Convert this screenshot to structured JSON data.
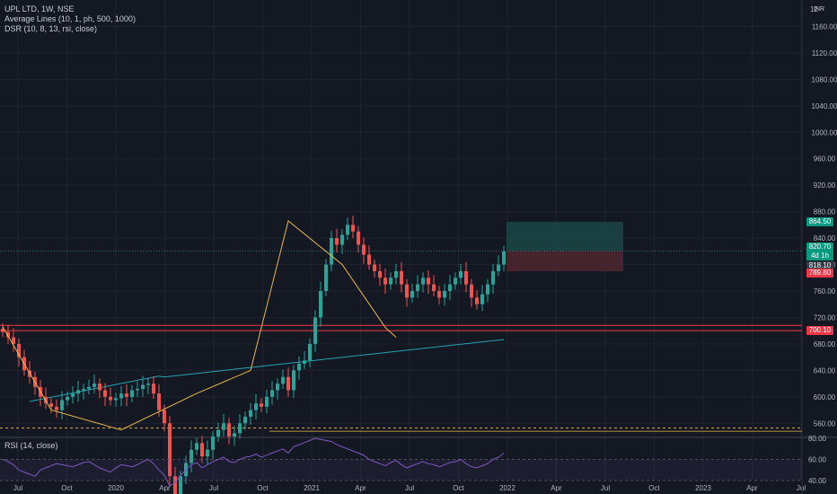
{
  "legend": {
    "symbol": "UPL LTD, 1W, NSE",
    "indicator1": "Average Lines (10, 1, ph, 500, 1000)",
    "indicator2": "DSR (10, 8, 13, rsi, close)",
    "rsi": "RSI (14, close)",
    "currency": "INR",
    "top_price_label": "12"
  },
  "price_tags": [
    {
      "label": "864.50",
      "sub": "",
      "color": "#089981"
    },
    {
      "label": "820.70",
      "sub": "4d 1h",
      "color": "#089981"
    },
    {
      "label": "818.10",
      "sub": "",
      "color": "#363a45"
    },
    {
      "label": "789.80",
      "sub": "",
      "color": "#f23645"
    },
    {
      "label": "700.10",
      "sub": "",
      "color": "#f23645"
    }
  ],
  "colors": {
    "background": "#141823",
    "grid": "#1f2330",
    "up": "#26a69a",
    "down": "#ef5350",
    "pattern_line": "#e8b84b",
    "avg_line": "#26a0b0",
    "resistance": "#f23645",
    "rsi_line": "#7e57c2",
    "target_zone": "#1a4a47",
    "stop_zone": "#4a2630",
    "text": "#b2b5be"
  },
  "chart_data": {
    "type": "candlestick",
    "timeframe": "1W",
    "ylim": [
      540,
      1200
    ],
    "y_ticks": [
      560,
      600,
      640,
      680,
      720,
      760,
      800,
      840,
      880,
      920,
      960,
      1000,
      1040,
      1080,
      1120,
      1160
    ],
    "x_ticks": [
      "Jul",
      "Oct",
      "2020",
      "Apr",
      "Jul",
      "Oct",
      "2021",
      "Apr",
      "Jul",
      "Oct",
      "2022",
      "Apr",
      "Jul",
      "Oct",
      "2023",
      "Apr",
      "Jul"
    ],
    "closes": [
      698,
      690,
      680,
      660,
      640,
      630,
      615,
      600,
      590,
      585,
      580,
      595,
      600,
      605,
      610,
      612,
      615,
      620,
      610,
      600,
      595,
      598,
      605,
      600,
      610,
      612,
      618,
      620,
      605,
      580,
      560,
      480,
      450,
      480,
      500,
      520,
      530,
      510,
      520,
      540,
      550,
      560,
      540,
      545,
      560,
      570,
      580,
      590,
      585,
      600,
      610,
      620,
      630,
      610,
      640,
      650,
      655,
      680,
      720,
      760,
      800,
      840,
      830,
      845,
      860,
      850,
      830,
      815,
      800,
      790,
      780,
      770,
      780,
      790,
      770,
      750,
      760,
      770,
      780,
      770,
      760,
      750,
      760,
      770,
      780,
      790,
      770,
      750,
      740,
      755,
      770,
      790,
      800,
      820
    ],
    "rsi": [
      60,
      58,
      55,
      50,
      48,
      46,
      44,
      50,
      52,
      54,
      56,
      55,
      54,
      53,
      55,
      57,
      58,
      55,
      52,
      50,
      48,
      52,
      55,
      54,
      53,
      55,
      58,
      60,
      56,
      50,
      45,
      35,
      38,
      45,
      50,
      55,
      57,
      52,
      55,
      58,
      60,
      62,
      58,
      57,
      60,
      62,
      63,
      65,
      62,
      64,
      66,
      68,
      70,
      66,
      72,
      74,
      76,
      78,
      80,
      79,
      78,
      77,
      74,
      72,
      70,
      68,
      66,
      64,
      60,
      58,
      56,
      54,
      57,
      59,
      55,
      52,
      54,
      56,
      58,
      56,
      55,
      53,
      55,
      57,
      58,
      60,
      56,
      53,
      52,
      54,
      56,
      60,
      62,
      66
    ],
    "rsi_ylim": [
      40,
      80
    ],
    "rsi_ticks": [
      40,
      60,
      80
    ],
    "levels": {
      "target": 864.5,
      "entry": 820.7,
      "stop": 789.8,
      "resistance_upper": 708,
      "resistance_lower": 700.1,
      "support_dashed": 553,
      "support_solid": 548
    },
    "pattern_points": [
      [
        0,
        706
      ],
      [
        9,
        580
      ],
      [
        22,
        550
      ],
      [
        36,
        605
      ],
      [
        46,
        640
      ],
      [
        53,
        866
      ],
      [
        63,
        800
      ],
      [
        71,
        705
      ],
      [
        73,
        690
      ]
    ]
  }
}
